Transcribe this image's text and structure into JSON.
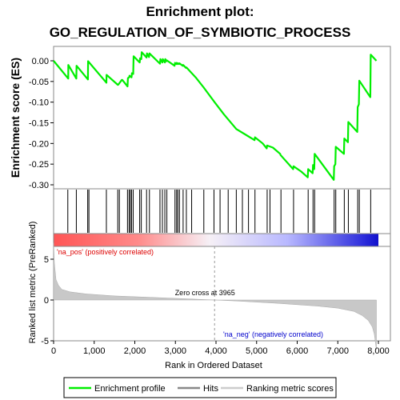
{
  "chart_data": {
    "type": "line",
    "title": "Enrichment plot:",
    "subtitle": "GO_REGULATION_OF_SYMBIOTIC_PROCESS",
    "top_panel": {
      "ylabel": "Enrichment score (ES)",
      "ylim": [
        -0.3,
        0.03
      ],
      "yticks": [
        0.0,
        -0.05,
        -0.1,
        -0.15,
        -0.2,
        -0.25,
        -0.3
      ],
      "ytick_labels": [
        "0.00",
        "-0.05",
        "-0.10",
        "-0.15",
        "-0.20",
        "-0.25",
        "-0.30"
      ],
      "series": [
        {
          "name": "Enrichment profile",
          "color": "#00ee00",
          "x": [
            0,
            360,
            362,
            560,
            565,
            845,
            850,
            1300,
            1305,
            1580,
            1590,
            1680,
            1690,
            1820,
            1830,
            1860,
            1870,
            1920,
            1930,
            1960,
            1970,
            2120,
            2130,
            2160,
            2170,
            2290,
            2300,
            2350,
            2360,
            2620,
            2630,
            2680,
            2690,
            2740,
            2750,
            2780,
            2790,
            2980,
            2990,
            3020,
            3030,
            3050,
            3060,
            3090,
            3100,
            3180,
            3190,
            3260,
            3270,
            3500,
            3700,
            3965,
            4200,
            4500,
            4750,
            4950,
            4960,
            5150,
            5250,
            5260,
            5400,
            5580,
            5590,
            5900,
            5910,
            6100,
            6260,
            6270,
            6380,
            6390,
            6420,
            6430,
            6900,
            6910,
            6940,
            6950,
            7150,
            7160,
            7250,
            7260,
            7480,
            7490,
            7520,
            7530,
            7800,
            7810,
            7950
          ],
          "y": [
            0.0,
            -0.043,
            -0.01,
            -0.043,
            -0.012,
            -0.045,
            -0.001,
            -0.053,
            -0.034,
            -0.058,
            -0.058,
            -0.046,
            -0.046,
            -0.062,
            -0.042,
            -0.04,
            -0.036,
            -0.04,
            -0.03,
            -0.032,
            0.011,
            -0.004,
            0.006,
            0.004,
            0.021,
            0.008,
            0.018,
            0.009,
            0.018,
            -0.007,
            0.004,
            -0.004,
            0.004,
            -0.004,
            0.004,
            -0.001,
            0.001,
            -0.012,
            -0.005,
            -0.008,
            -0.005,
            -0.008,
            -0.006,
            -0.008,
            -0.006,
            -0.012,
            -0.01,
            -0.017,
            -0.016,
            -0.04,
            -0.065,
            -0.1,
            -0.13,
            -0.165,
            -0.18,
            -0.192,
            -0.185,
            -0.2,
            -0.212,
            -0.205,
            -0.21,
            -0.225,
            -0.228,
            -0.262,
            -0.255,
            -0.268,
            -0.282,
            -0.262,
            -0.272,
            -0.252,
            -0.262,
            -0.225,
            -0.288,
            -0.255,
            -0.25,
            -0.208,
            -0.225,
            -0.188,
            -0.197,
            -0.148,
            -0.172,
            -0.112,
            -0.105,
            -0.048,
            -0.088,
            0.015,
            0.0
          ]
        }
      ]
    },
    "hits": [
      350,
      560,
      840,
      870,
      1300,
      1580,
      1620,
      1820,
      1860,
      1890,
      1920,
      1960,
      2120,
      2160,
      2290,
      2360,
      2620,
      2680,
      2740,
      2790,
      2990,
      3030,
      3060,
      3100,
      3190,
      3270,
      3400,
      3700,
      3950,
      4100,
      4300,
      4500,
      4650,
      4800,
      4960,
      5260,
      5330,
      5600,
      5910,
      6270,
      6390,
      6430,
      6910,
      6950,
      7160,
      7260,
      7490,
      7530,
      7810
    ],
    "bottom_panel": {
      "xlabel": "Rank in Ordered Dataset",
      "ylabel": "Ranked list metric (PreRanked)",
      "xlim": [
        0,
        8200
      ],
      "xticks": [
        0,
        1000,
        2000,
        3000,
        4000,
        5000,
        6000,
        7000,
        8000
      ],
      "xtick_labels": [
        "0",
        "1,000",
        "2,000",
        "3,000",
        "4,000",
        "5,000",
        "6,000",
        "7,000",
        "8,000"
      ],
      "ylim": [
        -6.3,
        8.5
      ],
      "yticks": [
        5,
        0,
        -5
      ],
      "ytick_labels": [
        "5",
        "0",
        "-5"
      ],
      "zero_cross": 3965,
      "zero_cross_label": "Zero cross at 3965",
      "pos_label": "'na_pos' (positively correlated)",
      "neg_label": "'na_neg' (negatively correlated)",
      "metric_x": [
        0,
        20,
        60,
        120,
        200,
        400,
        800,
        1500,
        2500,
        3500,
        3965,
        4500,
        5500,
        6500,
        7000,
        7400,
        7600,
        7750,
        7850,
        7900,
        7930,
        7950
      ],
      "metric_y": [
        7.0,
        4.5,
        2.5,
        1.8,
        1.3,
        1.0,
        0.75,
        0.5,
        0.3,
        0.1,
        0.0,
        -0.12,
        -0.4,
        -0.75,
        -1.0,
        -1.4,
        -1.9,
        -2.5,
        -3.3,
        -4.2,
        -5.3,
        -6.1
      ]
    },
    "legend": {
      "placement": "bottom",
      "items": [
        {
          "label": "Enrichment profile",
          "color": "#00ee00"
        },
        {
          "label": "Hits",
          "color": "#888888"
        },
        {
          "label": "Ranking metric scores",
          "color": "#cccccc"
        }
      ]
    }
  }
}
